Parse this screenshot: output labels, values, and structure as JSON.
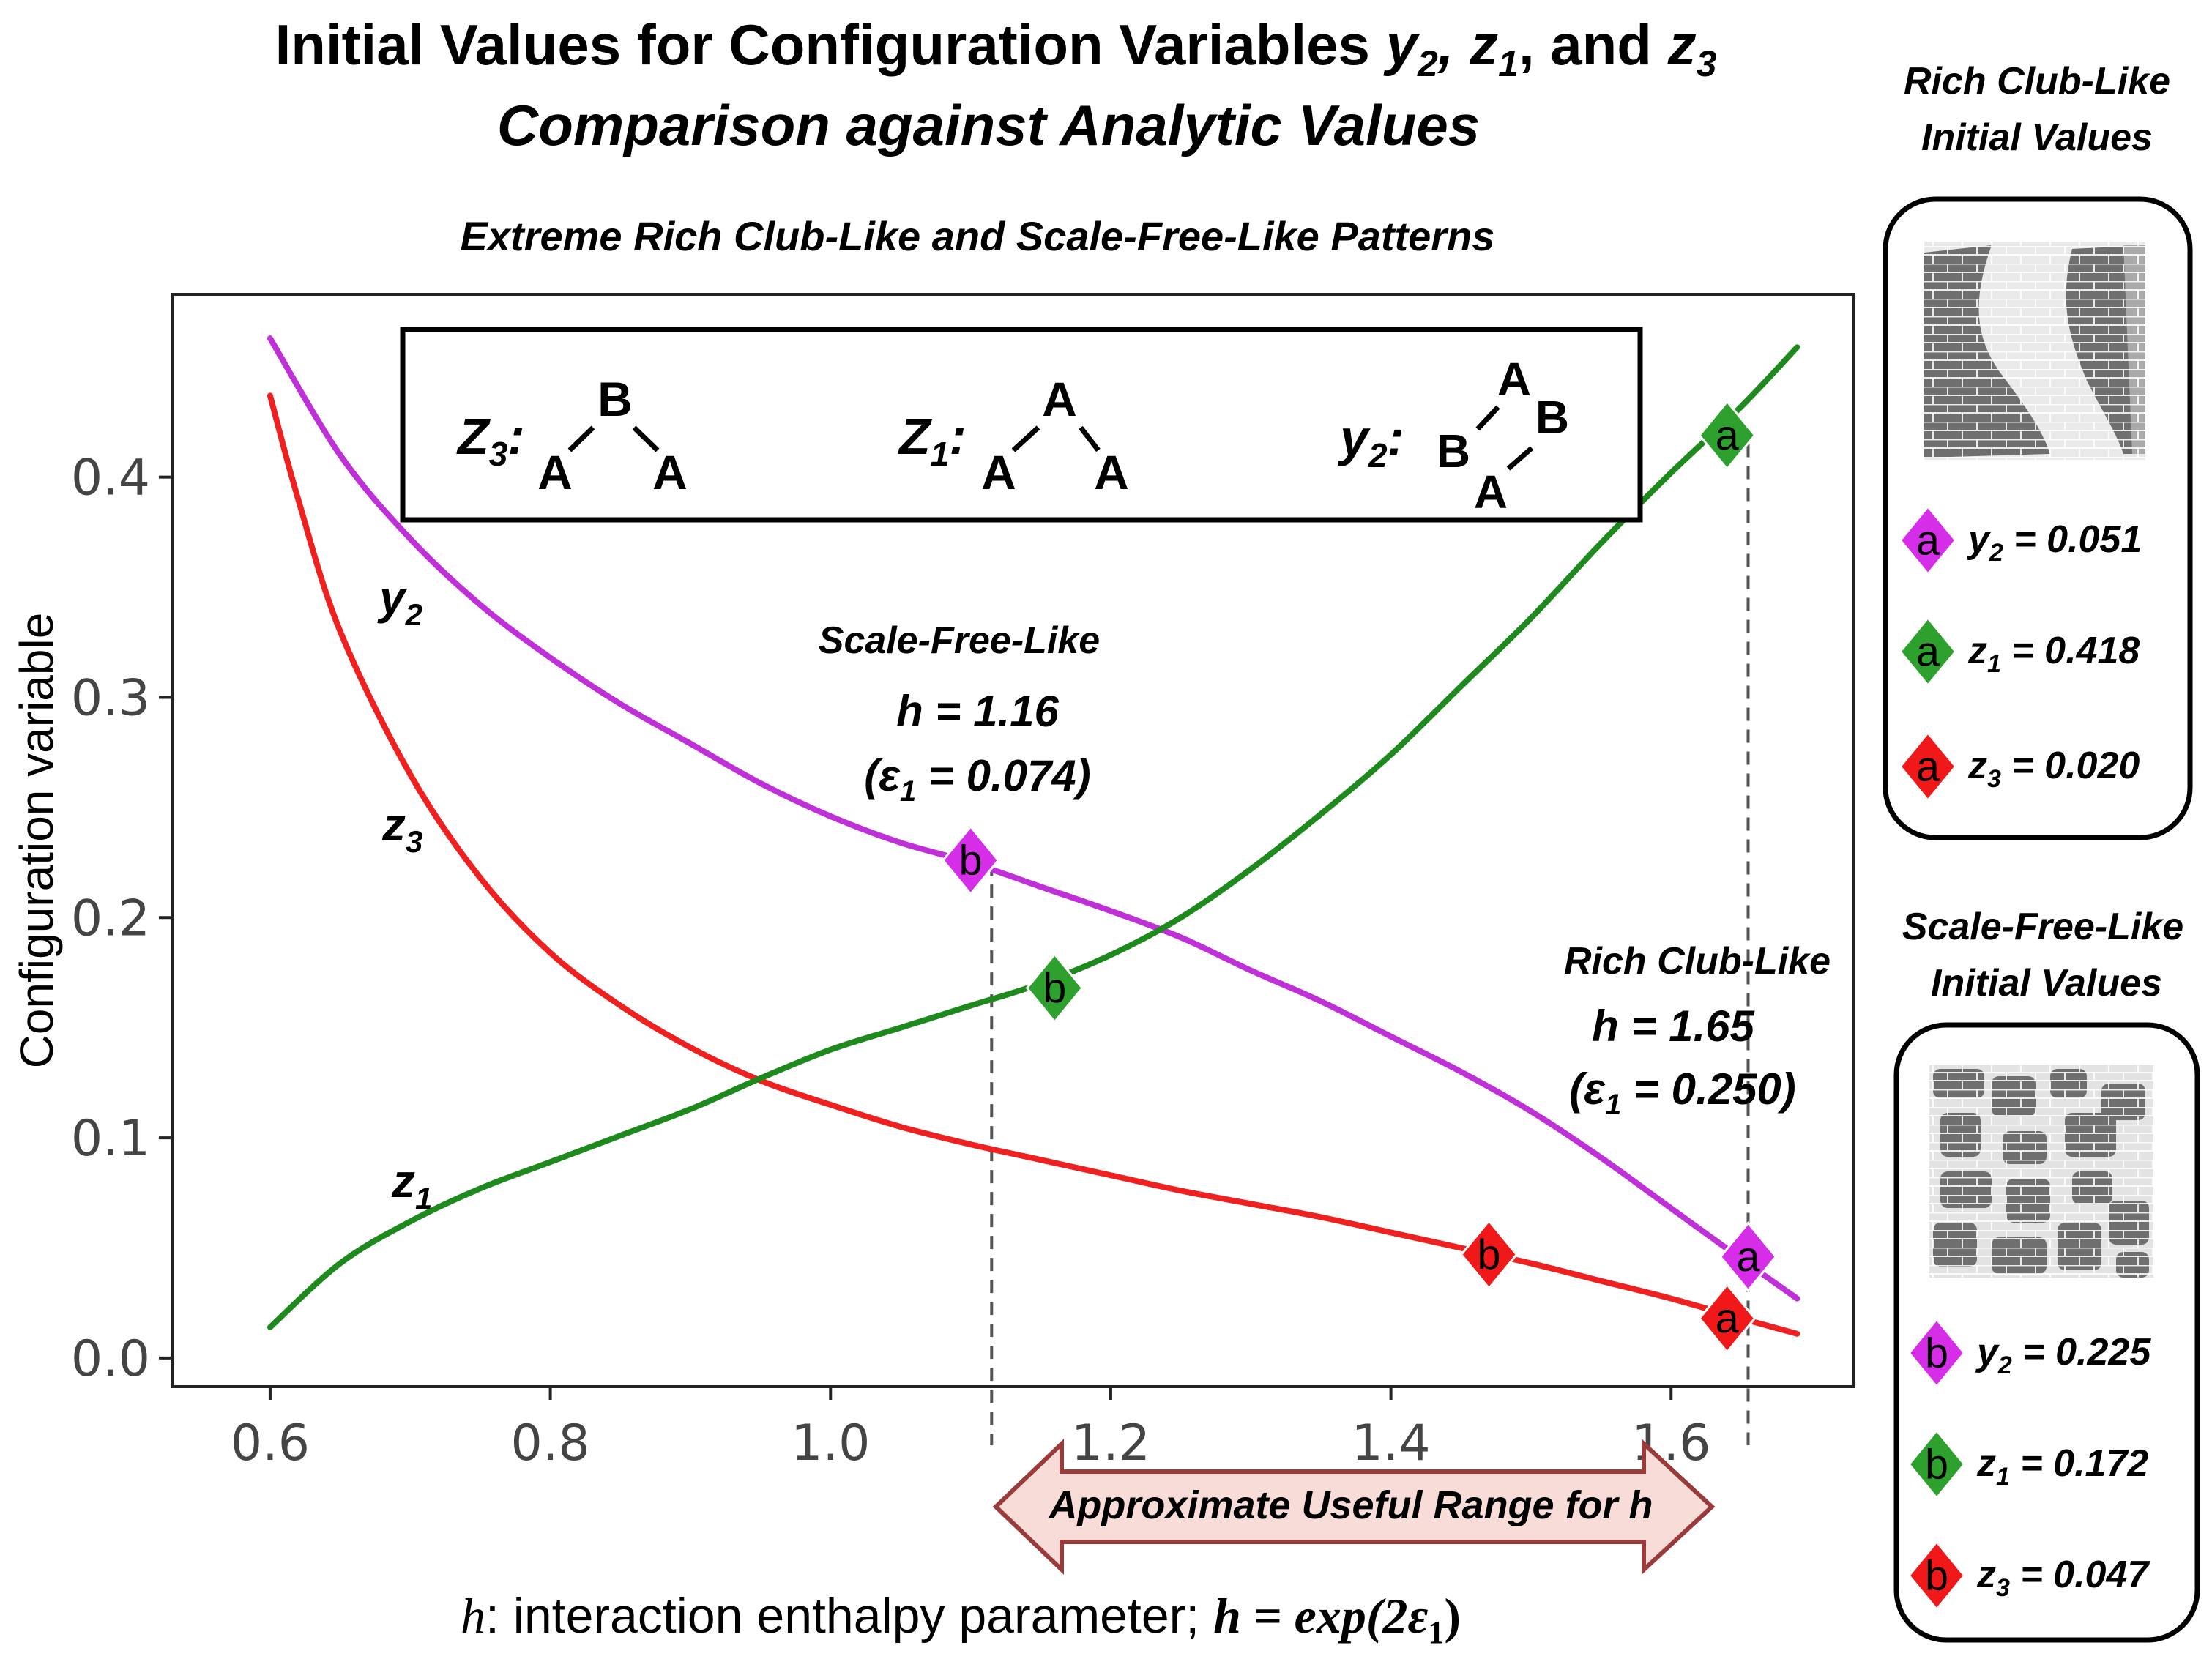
{
  "title": {
    "line1_prefix": "Initial Values for Configuration Variables ",
    "line1_vars": [
      "y",
      "2",
      ", ",
      "z",
      "1",
      ", and ",
      "z",
      "3"
    ],
    "line2": "Comparison against Analytic Values"
  },
  "chart_data": {
    "type": "line",
    "subtitle": "Extreme Rich Club-Like and Scale-Free-Like Patterns",
    "xlabel_italic": "h",
    "xlabel_text": ": interaction enthalpy parameter; ",
    "xlabel_formula": "h = exp(2ε",
    "xlabel_formula_sub": "1",
    "xlabel_formula_end": ")",
    "ylabel": "Configuration variable",
    "xlim": [
      0.53,
      1.73
    ],
    "ylim": [
      -0.013,
      0.483
    ],
    "xticks": [
      0.6,
      0.8,
      1.0,
      1.2,
      1.4,
      1.6
    ],
    "xtick_labels": [
      "0.6",
      "0.8",
      "1.0",
      "1.2",
      "1.4",
      "1.6"
    ],
    "yticks": [
      0.0,
      0.1,
      0.2,
      0.3,
      0.4
    ],
    "ytick_labels": [
      "0.0",
      "0.1",
      "0.2",
      "0.3",
      "0.4"
    ],
    "grid": false,
    "series": [
      {
        "name": "y2",
        "label_main": "y",
        "label_sub": "2",
        "color": "#c030d8",
        "x": [
          0.6,
          0.65,
          0.7,
          0.75,
          0.8,
          0.85,
          0.9,
          0.95,
          1.0,
          1.05,
          1.1,
          1.15,
          1.2,
          1.25,
          1.3,
          1.35,
          1.4,
          1.45,
          1.5,
          1.55,
          1.6,
          1.65,
          1.69
        ],
        "y": [
          0.463,
          0.41,
          0.372,
          0.342,
          0.318,
          0.297,
          0.279,
          0.261,
          0.246,
          0.234,
          0.225,
          0.214,
          0.203,
          0.191,
          0.176,
          0.162,
          0.146,
          0.13,
          0.112,
          0.091,
          0.068,
          0.045,
          0.027
        ]
      },
      {
        "name": "z3",
        "label_main": "z",
        "label_sub": "3",
        "color": "#ee2020",
        "x": [
          0.6,
          0.62,
          0.65,
          0.7,
          0.75,
          0.8,
          0.85,
          0.9,
          0.95,
          1.0,
          1.05,
          1.1,
          1.15,
          1.2,
          1.25,
          1.3,
          1.35,
          1.4,
          1.45,
          1.5,
          1.55,
          1.6,
          1.65,
          1.69
        ],
        "y": [
          0.437,
          0.39,
          0.33,
          0.265,
          0.218,
          0.184,
          0.16,
          0.141,
          0.126,
          0.115,
          0.105,
          0.097,
          0.09,
          0.083,
          0.076,
          0.07,
          0.064,
          0.057,
          0.05,
          0.043,
          0.035,
          0.027,
          0.018,
          0.011
        ]
      },
      {
        "name": "z1",
        "label_main": "z",
        "label_sub": "1",
        "color": "#1e8a1e",
        "x": [
          0.6,
          0.65,
          0.7,
          0.75,
          0.8,
          0.85,
          0.9,
          0.95,
          1.0,
          1.05,
          1.1,
          1.15,
          1.2,
          1.25,
          1.3,
          1.35,
          1.4,
          1.45,
          1.5,
          1.55,
          1.6,
          1.65,
          1.69
        ],
        "y": [
          0.014,
          0.043,
          0.062,
          0.077,
          0.089,
          0.101,
          0.113,
          0.127,
          0.14,
          0.15,
          0.16,
          0.17,
          0.183,
          0.2,
          0.222,
          0.247,
          0.274,
          0.305,
          0.336,
          0.37,
          0.402,
          0.432,
          0.459
        ]
      }
    ],
    "markers": [
      {
        "letter": "a",
        "series": "y2",
        "x": 1.655,
        "y": 0.046,
        "color": "#d62ee8"
      },
      {
        "letter": "a",
        "series": "z1",
        "x": 1.64,
        "y": 0.419,
        "color": "#2ea02e"
      },
      {
        "letter": "a",
        "series": "z3",
        "x": 1.64,
        "y": 0.018,
        "color": "#f01818"
      },
      {
        "letter": "b",
        "series": "y2",
        "x": 1.1,
        "y": 0.226,
        "color": "#d62ee8"
      },
      {
        "letter": "b",
        "series": "z1",
        "x": 1.16,
        "y": 0.168,
        "color": "#2ea02e"
      },
      {
        "letter": "b",
        "series": "z3",
        "x": 1.47,
        "y": 0.047,
        "color": "#f01818"
      }
    ],
    "vlines": [
      {
        "x": 1.115,
        "y_top": 0.225
      },
      {
        "x": 1.655,
        "y_top": 0.415
      }
    ],
    "annotations": {
      "scale_free": {
        "title": "Scale-Free-Like",
        "h": "h = 1.16",
        "eps_pre": "(ε",
        "eps_sub": "1",
        "eps_post": " = 0.074)"
      },
      "rich_club": {
        "title": "Rich Club-Like",
        "h": "h = 1.65",
        "eps_pre": "(ε",
        "eps_sub": "1",
        "eps_post": " = 0.250)"
      },
      "range_arrow": "Approximate  Useful Range for h"
    },
    "motif_box": {
      "z3_label": "Z",
      "z3_sub": "3",
      "z3_nodes": [
        "B",
        "A",
        "A"
      ],
      "z1_label": "Z",
      "z1_sub": "1",
      "z1_nodes": [
        "A",
        "A",
        "A"
      ],
      "y2_label": "y",
      "y2_sub": "2",
      "y2_nodes": [
        "A",
        "B",
        "B",
        "A"
      ]
    }
  },
  "side_panels": {
    "rich_club": {
      "title_line1": "Rich Club-Like",
      "title_line2": "Initial Values",
      "entries": [
        {
          "letter": "a",
          "var": "y",
          "sub": "2",
          "value": " = 0.051",
          "color": "#d62ee8"
        },
        {
          "letter": "a",
          "var": "z",
          "sub": "1",
          "value": " = 0.418",
          "color": "#2ea02e"
        },
        {
          "letter": "a",
          "var": "z",
          "sub": "3",
          "value": " = 0.020",
          "color": "#f01818"
        }
      ]
    },
    "scale_free": {
      "title_line1": "Scale-Free-Like",
      "title_line2": "Initial Values",
      "entries": [
        {
          "letter": "b",
          "var": "y",
          "sub": "2",
          "value": " = 0.225",
          "color": "#d62ee8"
        },
        {
          "letter": "b",
          "var": "z",
          "sub": "1",
          "value": " = 0.172",
          "color": "#2ea02e"
        },
        {
          "letter": "b",
          "var": "z",
          "sub": "3",
          "value": " = 0.047",
          "color": "#f01818"
        }
      ]
    }
  }
}
